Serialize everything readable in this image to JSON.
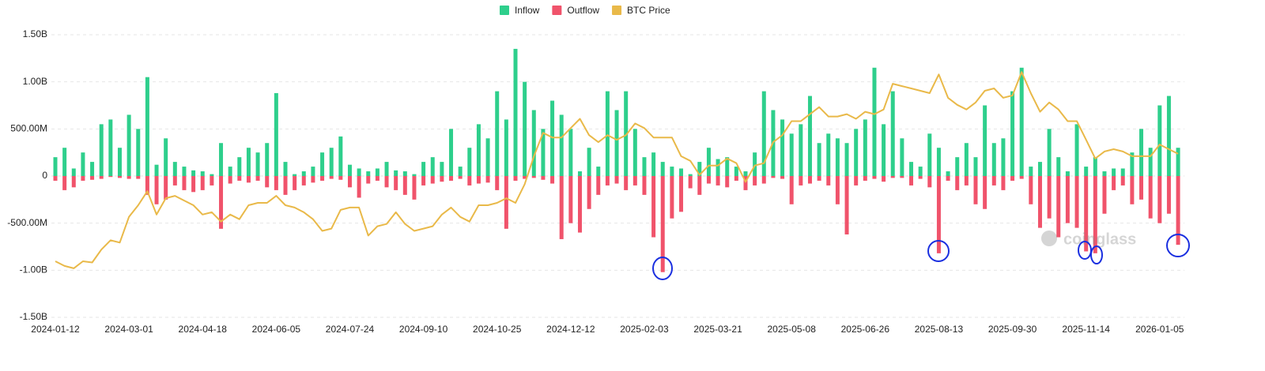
{
  "chart_data": {
    "type": "bar",
    "watermark": "coinglass",
    "categories": [
      "2024-01-12",
      null,
      null,
      null,
      null,
      null,
      null,
      null,
      "2024-03-01",
      null,
      null,
      null,
      null,
      null,
      null,
      null,
      "2024-04-18",
      null,
      null,
      null,
      null,
      null,
      null,
      null,
      "2024-06-05",
      null,
      null,
      null,
      null,
      null,
      null,
      null,
      "2024-07-24",
      null,
      null,
      null,
      null,
      null,
      null,
      null,
      "2024-09-10",
      null,
      null,
      null,
      null,
      null,
      null,
      null,
      "2024-10-25",
      null,
      null,
      null,
      null,
      null,
      null,
      null,
      "2024-12-12",
      null,
      null,
      null,
      null,
      null,
      null,
      null,
      "2025-02-03",
      null,
      null,
      null,
      null,
      null,
      null,
      null,
      "2025-03-21",
      null,
      null,
      null,
      null,
      null,
      null,
      null,
      "2025-05-08",
      null,
      null,
      null,
      null,
      null,
      null,
      null,
      "2025-06-26",
      null,
      null,
      null,
      null,
      null,
      null,
      null,
      "2025-08-13",
      null,
      null,
      null,
      null,
      null,
      null,
      null,
      "2025-09-30",
      null,
      null,
      null,
      null,
      null,
      null,
      null,
      "2025-11-14",
      null,
      null,
      null,
      null,
      null,
      null,
      null,
      "2026-01-05",
      null,
      null
    ],
    "series": [
      {
        "name": "Inflow",
        "color": "#2ecf8c",
        "values": [
          200000000.0,
          300000000.0,
          80000000.0,
          250000000.0,
          150000000.0,
          550000000.0,
          600000000.0,
          300000000.0,
          650000000.0,
          500000000.0,
          1050000000.0,
          120000000.0,
          400000000.0,
          150000000.0,
          100000000.0,
          60000000.0,
          50000000.0,
          20000000.0,
          350000000.0,
          100000000.0,
          200000000.0,
          300000000.0,
          250000000.0,
          350000000.0,
          880000000.0,
          150000000.0,
          20000000.0,
          50000000.0,
          100000000.0,
          250000000.0,
          300000000.0,
          420000000.0,
          120000000.0,
          80000000.0,
          50000000.0,
          80000000.0,
          150000000.0,
          60000000.0,
          50000000.0,
          20000000.0,
          150000000.0,
          200000000.0,
          150000000.0,
          500000000.0,
          100000000.0,
          300000000.0,
          550000000.0,
          400000000.0,
          900000000.0,
          600000000.0,
          1350000000.0,
          1000000000.0,
          700000000.0,
          500000000.0,
          800000000.0,
          650000000.0,
          500000000.0,
          50000000.0,
          300000000.0,
          100000000.0,
          900000000.0,
          700000000.0,
          900000000.0,
          500000000.0,
          200000000.0,
          250000000.0,
          150000000.0,
          100000000.0,
          80000000.0,
          20000000.0,
          150000000.0,
          300000000.0,
          180000000.0,
          200000000.0,
          100000000.0,
          50000000.0,
          250000000.0,
          900000000.0,
          700000000.0,
          600000000.0,
          450000000.0,
          550000000.0,
          850000000.0,
          350000000.0,
          450000000.0,
          400000000.0,
          350000000.0,
          500000000.0,
          600000000.0,
          1150000000.0,
          550000000.0,
          900000000.0,
          400000000.0,
          150000000.0,
          100000000.0,
          450000000.0,
          300000000.0,
          50000000.0,
          200000000.0,
          350000000.0,
          200000000.0,
          750000000.0,
          350000000.0,
          400000000.0,
          900000000.0,
          1150000000.0,
          100000000.0,
          150000000.0,
          500000000.0,
          200000000.0,
          50000000.0,
          550000000.0,
          100000000.0,
          200000000.0,
          50000000.0,
          80000000.0,
          80000000.0,
          250000000.0,
          500000000.0,
          300000000.0,
          750000000.0,
          850000000.0,
          300000000.0
        ]
      },
      {
        "name": "Outflow",
        "color": "#f0536b",
        "values": [
          -50000000.0,
          -150000000.0,
          -120000000.0,
          -50000000.0,
          -40000000.0,
          -30000000.0,
          -10000000.0,
          -20000000.0,
          -30000000.0,
          -30000000.0,
          -200000000.0,
          -300000000.0,
          -250000000.0,
          -100000000.0,
          -150000000.0,
          -170000000.0,
          -150000000.0,
          -100000000.0,
          -560000000.0,
          -80000000.0,
          -50000000.0,
          -70000000.0,
          -50000000.0,
          -120000000.0,
          -150000000.0,
          -200000000.0,
          -150000000.0,
          -100000000.0,
          -70000000.0,
          -50000000.0,
          -30000000.0,
          -40000000.0,
          -120000000.0,
          -230000000.0,
          -80000000.0,
          -50000000.0,
          -120000000.0,
          -150000000.0,
          -200000000.0,
          -250000000.0,
          -100000000.0,
          -80000000.0,
          -60000000.0,
          -50000000.0,
          -30000000.0,
          -100000000.0,
          -80000000.0,
          -70000000.0,
          -150000000.0,
          -560000000.0,
          -50000000.0,
          -30000000.0,
          -20000000.0,
          -40000000.0,
          -80000000.0,
          -670000000.0,
          -500000000.0,
          -600000000.0,
          -350000000.0,
          -200000000.0,
          -100000000.0,
          -80000000.0,
          -150000000.0,
          -100000000.0,
          -200000000.0,
          -650000000.0,
          -1020000000.0,
          -450000000.0,
          -380000000.0,
          -130000000.0,
          -200000000.0,
          -80000000.0,
          -100000000.0,
          -120000000.0,
          -50000000.0,
          -150000000.0,
          -100000000.0,
          -80000000.0,
          -20000000.0,
          -30000000.0,
          -300000000.0,
          -100000000.0,
          -80000000.0,
          -50000000.0,
          -100000000.0,
          -300000000.0,
          -620000000.0,
          -100000000.0,
          -50000000.0,
          -30000000.0,
          -60000000.0,
          -20000000.0,
          -20000000.0,
          -100000000.0,
          -30000000.0,
          -120000000.0,
          -820000000.0,
          -50000000.0,
          -150000000.0,
          -100000000.0,
          -300000000.0,
          -350000000.0,
          -100000000.0,
          -150000000.0,
          -50000000.0,
          -30000000.0,
          -300000000.0,
          -550000000.0,
          -450000000.0,
          -650000000.0,
          -500000000.0,
          -550000000.0,
          -800000000.0,
          -820000000.0,
          -400000000.0,
          -150000000.0,
          -100000000.0,
          -300000000.0,
          -250000000.0,
          -450000000.0,
          -500000000.0,
          -400000000.0,
          -730000000.0
        ]
      },
      {
        "name": "BTC Price",
        "color": "#e9b949",
        "axis": "y2",
        "values": [
          43000,
          41000,
          40000,
          43000,
          42500,
          48000,
          52000,
          51000,
          62000,
          67000,
          73000,
          63000,
          70000,
          71000,
          69000,
          67000,
          63000,
          64000,
          60000,
          63000,
          61000,
          67000,
          68000,
          68000,
          71000,
          67000,
          66000,
          64000,
          61000,
          56000,
          57000,
          65000,
          66000,
          66000,
          54000,
          58000,
          59000,
          64000,
          59000,
          56000,
          57000,
          58000,
          63000,
          66000,
          62000,
          60000,
          67000,
          67000,
          68000,
          70000,
          68000,
          76000,
          88000,
          98000,
          96000,
          96000,
          100000,
          104000,
          97000,
          94000,
          97000,
          95000,
          97000,
          102000,
          100000,
          96000,
          96000,
          96000,
          88000,
          86000,
          80000,
          84000,
          84000,
          87000,
          85000,
          77000,
          84000,
          85000,
          94000,
          97000,
          103000,
          103000,
          106000,
          109000,
          105000,
          105000,
          106000,
          104000,
          107000,
          106000,
          108000,
          119000,
          118000,
          117000,
          116000,
          115000,
          123000,
          113000,
          110000,
          108000,
          111000,
          116000,
          117000,
          113000,
          114000,
          124000,
          115000,
          107000,
          111000,
          108000,
          103000,
          103000,
          95000,
          87000,
          90000,
          91000,
          90000,
          88000,
          88000,
          88000,
          93000,
          91000,
          89000
        ]
      }
    ],
    "ylim": [
      -1500000000,
      1500000000
    ],
    "yticks": [
      {
        "value": -1500000000,
        "label": "-1.50B"
      },
      {
        "value": -1000000000,
        "label": "-1.00B"
      },
      {
        "value": -500000000,
        "label": "-500.00M"
      },
      0,
      {
        "value": 500000000,
        "label": "500.00M"
      },
      {
        "value": 1000000000,
        "label": "1.00B"
      },
      {
        "value": 1500000000,
        "label": "1.50B"
      }
    ],
    "y2lim": [
      19000,
      140000
    ],
    "grid": true,
    "legend": "top"
  }
}
